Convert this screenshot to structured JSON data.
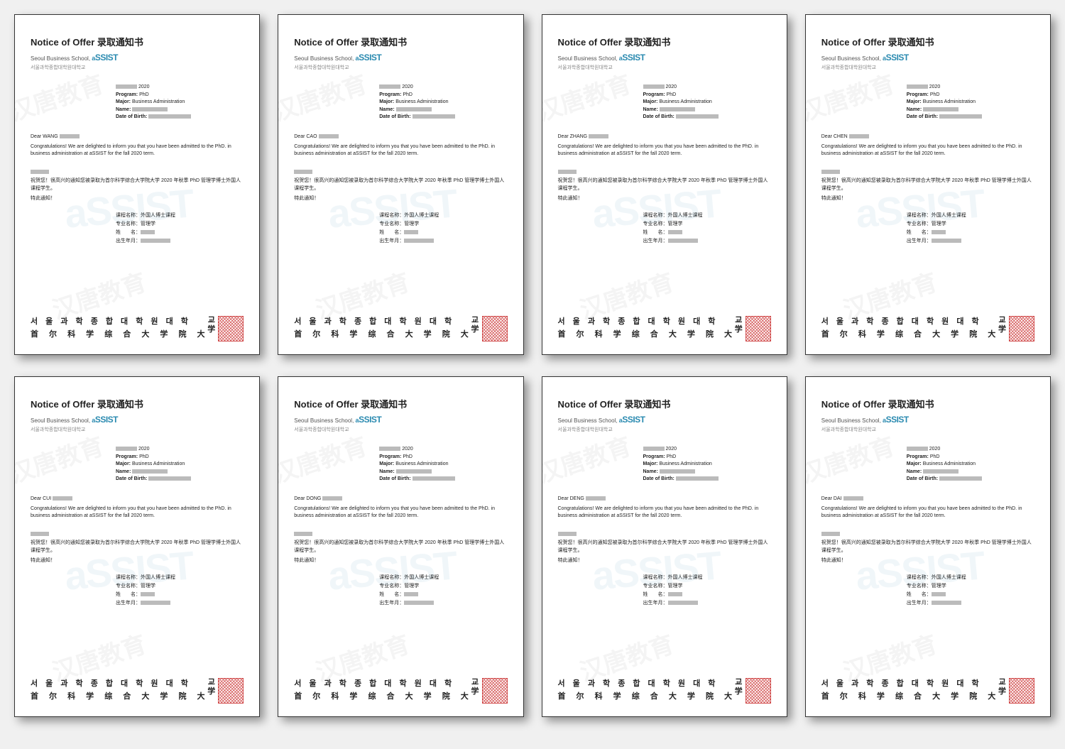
{
  "common": {
    "title": "Notice of Offer  录取通知书",
    "school_en": "Seoul Business School,",
    "assist_a": "a",
    "assist_rest": "SSIST",
    "korean_sub": "서울과학종합대학원대학교",
    "year": "2020",
    "program_label": "Program:",
    "program_value": "PhD",
    "major_label": "Major:",
    "major_value": "Business Administration",
    "name_label": "Name:",
    "dob_label": "Date of Birth:",
    "dear_prefix": "Dear",
    "para_en": "Congratulations! We are delighted to inform you that you have been admitted to the PhD. in business administration at aSSIST for the fall 2020 term.",
    "para_cn": "祝贺您！很高兴的通知您被录取为首尔科学综合大学院大学 2020 年秋季 PhD 管理学博士外国人课程学生。",
    "notice_cn": "特此通知！",
    "cn_course_label": "课程名称：",
    "cn_course_value": "外国人博士课程",
    "cn_major_label": "专业名称：",
    "cn_major_value": "管理学",
    "cn_name_label": "姓　　名：",
    "cn_dob_label": "出生年月：",
    "footer_kr": "서 울 과 학 종 합 대 학 원 대 학",
    "footer_cn": "首 尔 科 学 综 合 大 学 院 大",
    "footer_end_kr": "교",
    "footer_end_cn": "学",
    "watermark_cn": "汉唐教育",
    "watermark_en": "aSSIST"
  },
  "documents": [
    {
      "surname": "WANG"
    },
    {
      "surname": "CAO"
    },
    {
      "surname": "ZHANG"
    },
    {
      "surname": "CHEN"
    },
    {
      "surname": "CUI"
    },
    {
      "surname": "DONG"
    },
    {
      "surname": "DENG"
    },
    {
      "surname": "DAI"
    }
  ]
}
